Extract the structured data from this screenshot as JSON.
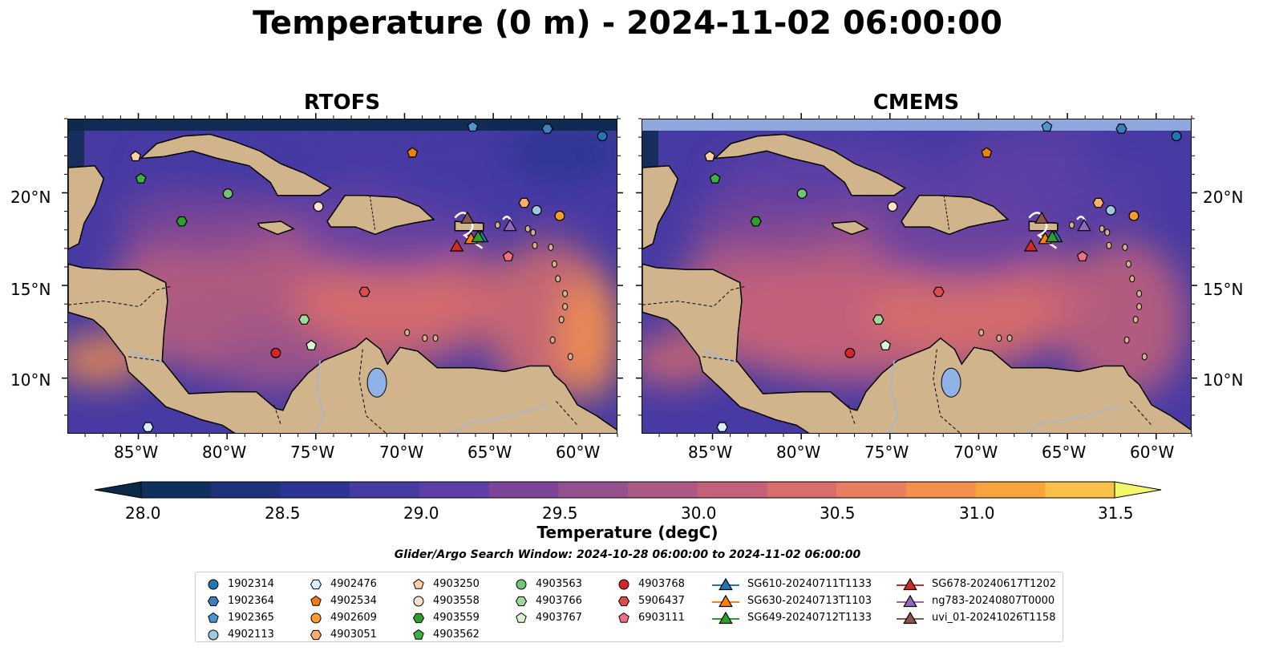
{
  "title": "Temperature (0 m) - 2024-11-02 06:00:00",
  "panels": [
    {
      "title": "RTOFS"
    },
    {
      "title": "CMEMS"
    }
  ],
  "lon_ticks": [
    "85°W",
    "80°W",
    "75°W",
    "70°W",
    "65°W",
    "60°W"
  ],
  "lat_ticks": [
    "20°N",
    "15°N",
    "10°N"
  ],
  "colorbar": {
    "label": "Temperature (degC)",
    "ticks": [
      "28.0",
      "28.5",
      "29.0",
      "29.5",
      "30.0",
      "30.5",
      "31.0",
      "31.5"
    ],
    "range": [
      28.0,
      31.5
    ],
    "colors": [
      "#0b2a4a",
      "#0f2f5c",
      "#1f3178",
      "#2c3593",
      "#473aa3",
      "#5f3fa5",
      "#7b4697",
      "#94518d",
      "#ac5a84",
      "#c4617a",
      "#d86d6c",
      "#e87d5f",
      "#f2904e",
      "#f7a33e",
      "#f8c048",
      "#f4dc5a"
    ]
  },
  "search_window": "Glider/Argo Search Window: 2024-10-28 06:00:00 to 2024-11-02 06:00:00",
  "legend": {
    "columns": [
      [
        {
          "label": "1902314",
          "marker": "circle",
          "color": "#1f77b4"
        },
        {
          "label": "1902364",
          "marker": "hexagon",
          "color": "#3b7fbf"
        },
        {
          "label": "1902365",
          "marker": "pentagon",
          "color": "#4c95d6"
        },
        {
          "label": "4902113",
          "marker": "circle",
          "color": "#9ecae1"
        }
      ],
      [
        {
          "label": "4902476",
          "marker": "hexagon",
          "color": "#dbeeff"
        },
        {
          "label": "4902534",
          "marker": "pentagon",
          "color": "#f07f0e"
        },
        {
          "label": "4902609",
          "marker": "circle",
          "color": "#fd9a2c"
        },
        {
          "label": "4903051",
          "marker": "hexagon",
          "color": "#fdae6b"
        }
      ],
      [
        {
          "label": "4903250",
          "marker": "pentagon",
          "color": "#fdd0a2"
        },
        {
          "label": "4903558",
          "marker": "circle",
          "color": "#fde2cc"
        },
        {
          "label": "4903559",
          "marker": "hexagon",
          "color": "#2ca02c"
        },
        {
          "label": "4903562",
          "marker": "pentagon",
          "color": "#3cb043"
        }
      ],
      [
        {
          "label": "4903563",
          "marker": "circle",
          "color": "#74c476"
        },
        {
          "label": "4903766",
          "marker": "hexagon",
          "color": "#a1d99b"
        },
        {
          "label": "4903767",
          "marker": "pentagon",
          "color": "#d9f5d0"
        }
      ],
      [
        {
          "label": "4903768",
          "marker": "circle",
          "color": "#d62728"
        },
        {
          "label": "5906437",
          "marker": "hexagon",
          "color": "#e04a4a"
        },
        {
          "label": "6903111",
          "marker": "pentagon",
          "color": "#f07080"
        }
      ],
      [
        {
          "label": "SG610-20240711T1133",
          "marker": "triangle-line",
          "color": "#1f77b4"
        },
        {
          "label": "SG630-20240713T1103",
          "marker": "triangle-line",
          "color": "#ff7f0e"
        },
        {
          "label": "SG649-20240712T1133",
          "marker": "triangle-line",
          "color": "#2ca02c"
        }
      ],
      [
        {
          "label": "SG678-20240617T1202",
          "marker": "triangle-line",
          "color": "#d62728"
        },
        {
          "label": "ng783-20240807T0000",
          "marker": "triangle-line",
          "color": "#9467bd"
        },
        {
          "label": "uvi_01-20241026T1158",
          "marker": "triangle-line",
          "color": "#8c564b"
        }
      ]
    ]
  },
  "map": {
    "lon_range": [
      -89,
      -58
    ],
    "lat_range": [
      7,
      24
    ],
    "colors": {
      "land": "#d2b48c",
      "ocean_deep": "#0b2a4a",
      "lake": "#8fb3e6",
      "river": "#9fb8d8",
      "cmems_nodata_band": "#8fa8dc"
    },
    "platforms": [
      {
        "id": "1902314",
        "marker": "circle",
        "color": "#1f77b4",
        "lon": -58.9,
        "lat": 23.1
      },
      {
        "id": "1902364",
        "marker": "hexagon",
        "color": "#3b7fbf",
        "lon": -62.0,
        "lat": 23.5
      },
      {
        "id": "1902365",
        "marker": "pentagon",
        "color": "#4c95d6",
        "lon": -66.2,
        "lat": 23.6
      },
      {
        "id": "4902113",
        "marker": "circle",
        "color": "#9ecae1",
        "lon": -62.6,
        "lat": 19.1
      },
      {
        "id": "4902476",
        "marker": "hexagon",
        "color": "#dbeeff",
        "lon": -84.5,
        "lat": 7.4
      },
      {
        "id": "4902534",
        "marker": "pentagon",
        "color": "#f07f0e",
        "lon": -69.6,
        "lat": 22.2
      },
      {
        "id": "4902609",
        "marker": "circle",
        "color": "#fd9a2c",
        "lon": -61.3,
        "lat": 18.8
      },
      {
        "id": "4903051",
        "marker": "hexagon",
        "color": "#fdae6b",
        "lon": -63.3,
        "lat": 19.5
      },
      {
        "id": "4903250",
        "marker": "pentagon",
        "color": "#fdd0a2",
        "lon": -85.2,
        "lat": 22.0
      },
      {
        "id": "4903558",
        "marker": "circle",
        "color": "#fde2cc",
        "lon": -74.9,
        "lat": 19.3
      },
      {
        "id": "4903559",
        "marker": "hexagon",
        "color": "#2ca02c",
        "lon": -82.6,
        "lat": 18.5
      },
      {
        "id": "4903562",
        "marker": "pentagon",
        "color": "#3cb043",
        "lon": -84.9,
        "lat": 20.8
      },
      {
        "id": "4903563",
        "marker": "circle",
        "color": "#74c476",
        "lon": -80.0,
        "lat": 20.0
      },
      {
        "id": "4903766",
        "marker": "hexagon",
        "color": "#a1d99b",
        "lon": -75.7,
        "lat": 13.2
      },
      {
        "id": "4903767",
        "marker": "pentagon",
        "color": "#d9f5d0",
        "lon": -75.3,
        "lat": 11.8
      },
      {
        "id": "4903768",
        "marker": "circle",
        "color": "#d62728",
        "lon": -77.3,
        "lat": 11.4
      },
      {
        "id": "5906437",
        "marker": "hexagon",
        "color": "#e04a4a",
        "lon": -72.3,
        "lat": 14.7
      },
      {
        "id": "6903111",
        "marker": "pentagon",
        "color": "#f07080",
        "lon": -64.2,
        "lat": 16.6
      },
      {
        "id": "SG610-20240711T1133",
        "marker": "triangle",
        "color": "#1f77b4",
        "lon": -65.7,
        "lat": 17.6
      },
      {
        "id": "SG630-20240713T1103",
        "marker": "triangle",
        "color": "#ff7f0e",
        "lon": -66.3,
        "lat": 17.5
      },
      {
        "id": "SG649-20240712T1133",
        "marker": "triangle",
        "color": "#2ca02c",
        "lon": -65.9,
        "lat": 17.6
      },
      {
        "id": "SG678-20240617T1202",
        "marker": "triangle",
        "color": "#d62728",
        "lon": -67.1,
        "lat": 17.1
      },
      {
        "id": "ng783-20240807T0000",
        "marker": "triangle",
        "color": "#9467bd",
        "lon": -64.1,
        "lat": 18.2
      },
      {
        "id": "uvi_01-20241026T1158",
        "marker": "triangle",
        "color": "#8c564b",
        "lon": -66.5,
        "lat": 18.6
      }
    ]
  }
}
